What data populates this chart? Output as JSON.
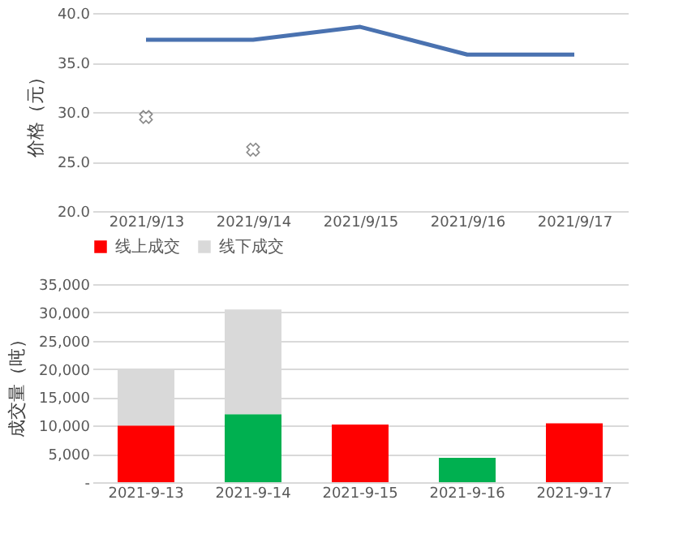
{
  "chart_data": [
    {
      "type": "line",
      "ylabel": "价格（元）",
      "categories": [
        "2021/9/13",
        "2021/9/14",
        "2021/9/15",
        "2021/9/16",
        "2021/9/17"
      ],
      "series": [
        {
          "type": "line",
          "color": "#4a72b0",
          "values": [
            37.3,
            37.3,
            38.6,
            35.8,
            35.8
          ]
        },
        {
          "type": "scatter",
          "color": "#595959",
          "marker": "cross",
          "values": [
            29.5,
            26.2,
            null,
            null,
            null
          ]
        }
      ],
      "ylim": [
        20,
        40
      ],
      "yticks": [
        {
          "value": 20,
          "label": "20.0"
        },
        {
          "value": 25,
          "label": "25.0"
        },
        {
          "value": 30,
          "label": "30.0"
        },
        {
          "value": 35,
          "label": "35.0"
        },
        {
          "value": 40,
          "label": "40.0"
        }
      ],
      "grid": "y"
    },
    {
      "type": "bar",
      "stacked": true,
      "ylabel": "成交量（吨）",
      "categories": [
        "2021-9-13",
        "2021-9-14",
        "2021-9-15",
        "2021-9-16",
        "2021-9-17"
      ],
      "series": [
        {
          "name": "线上成交",
          "color": "#ff0000",
          "colors": [
            "#ff0000",
            "#00b050",
            "#ff0000",
            "#00b050",
            "#ff0000"
          ],
          "values": [
            10000,
            12000,
            10200,
            4300,
            10400
          ]
        },
        {
          "name": "线下成交",
          "color": "#d9d9d9",
          "values": [
            10000,
            18500,
            null,
            null,
            null
          ]
        }
      ],
      "ylim": [
        0,
        35000
      ],
      "yticks": [
        {
          "value": 0,
          "label": "-"
        },
        {
          "value": 5000,
          "label": "5,000"
        },
        {
          "value": 10000,
          "label": "10,000"
        },
        {
          "value": 15000,
          "label": "15,000"
        },
        {
          "value": 20000,
          "label": "20,000"
        },
        {
          "value": 25000,
          "label": "25,000"
        },
        {
          "value": 30000,
          "label": "30,000"
        },
        {
          "value": 35000,
          "label": "35,000"
        }
      ],
      "grid": "y",
      "legend": "top"
    }
  ]
}
